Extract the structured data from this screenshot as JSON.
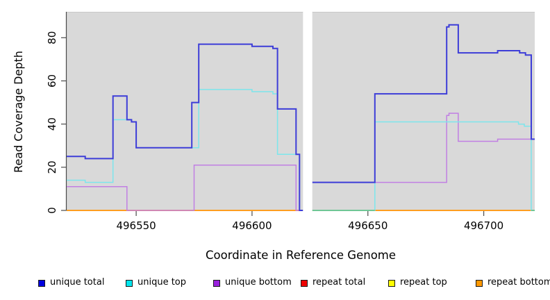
{
  "chart_data": {
    "type": "line",
    "step": true,
    "title": "",
    "xlabel": "Coordinate in Reference Genome",
    "ylabel": "Read Coverage Depth",
    "x_range": [
      496520,
      496722
    ],
    "y_range": [
      0,
      92
    ],
    "x_ticks": [
      496550,
      496600,
      496650,
      496700
    ],
    "y_ticks": [
      0,
      20,
      40,
      60,
      80
    ],
    "gap_x": [
      496622,
      496626
    ],
    "plot_bg": "#d9d9d9",
    "axis_color": "#4a4a4a",
    "tick_label_color": "#000000",
    "draw_order": [
      "repeat total",
      "repeat top",
      "repeat bottom",
      "unique bottom",
      "unique top",
      "unique total"
    ],
    "series": [
      {
        "name": "unique total",
        "line_color": "#3d3dd8",
        "legend_color": "#0000e0",
        "width": 2,
        "segments": [
          {
            "end": 496622,
            "points": [
              [
                496520,
                25
              ],
              [
                496528,
                24
              ],
              [
                496540,
                53
              ],
              [
                496546,
                42
              ],
              [
                496548,
                41
              ],
              [
                496550,
                29
              ],
              [
                496574,
                50
              ],
              [
                496577,
                77
              ],
              [
                496600,
                76
              ],
              [
                496609,
                75
              ],
              [
                496611,
                47
              ],
              [
                496619,
                26
              ],
              [
                496620.5,
                0
              ]
            ]
          },
          {
            "end": 496722,
            "points": [
              [
                496626,
                13
              ],
              [
                496653,
                54
              ],
              [
                496684,
                85
              ],
              [
                496685,
                86
              ],
              [
                496689,
                73
              ],
              [
                496706,
                74
              ],
              [
                496715.5,
                73
              ],
              [
                496718,
                72
              ],
              [
                496720.5,
                33
              ]
            ]
          }
        ]
      },
      {
        "name": "unique top",
        "line_color": "#7ce6ec",
        "legend_color": "#00e6ee",
        "width": 1.5,
        "segments": [
          {
            "end": 496622,
            "points": [
              [
                496520,
                14
              ],
              [
                496528,
                13
              ],
              [
                496540,
                42
              ],
              [
                496548,
                41
              ],
              [
                496550,
                29
              ],
              [
                496577,
                56
              ],
              [
                496600,
                55
              ],
              [
                496609,
                54
              ],
              [
                496611,
                26
              ],
              [
                496620.5,
                0
              ]
            ]
          },
          {
            "end": 496722,
            "points": [
              [
                496626,
                0
              ],
              [
                496653,
                41
              ],
              [
                496715,
                40
              ],
              [
                496717.5,
                39
              ],
              [
                496720.5,
                0
              ]
            ]
          }
        ]
      },
      {
        "name": "unique bottom",
        "line_color": "#c17fe3",
        "legend_color": "#9920dd",
        "width": 1.5,
        "segments": [
          {
            "end": 496622,
            "points": [
              [
                496520,
                11
              ],
              [
                496546,
                0
              ],
              [
                496575,
                21
              ],
              [
                496619,
                0
              ]
            ]
          },
          {
            "end": 496722,
            "points": [
              [
                496626,
                13
              ],
              [
                496684,
                44
              ],
              [
                496685,
                45
              ],
              [
                496689,
                32
              ],
              [
                496706,
                33
              ]
            ]
          }
        ]
      },
      {
        "name": "repeat total",
        "line_color": "#e00000",
        "legend_color": "#ee0000",
        "width": 1.5,
        "segments": [
          {
            "end": 496622,
            "points": [
              [
                496520,
                0
              ]
            ]
          },
          {
            "end": 496722,
            "points": [
              [
                496626,
                0
              ]
            ]
          }
        ]
      },
      {
        "name": "repeat top",
        "line_color": "#ffff00",
        "legend_color": "#ffff00",
        "width": 1.5,
        "segments": [
          {
            "end": 496622,
            "points": [
              [
                496520,
                0
              ]
            ]
          },
          {
            "end": 496722,
            "points": [
              [
                496626,
                0
              ]
            ]
          }
        ]
      },
      {
        "name": "repeat bottom",
        "line_color": "#ff9a1e",
        "legend_color": "#ff9800",
        "width": 1.8,
        "segments": [
          {
            "end": 496622,
            "points": [
              [
                496520,
                0
              ]
            ]
          },
          {
            "end": 496722,
            "points": [
              [
                496626,
                0
              ]
            ]
          }
        ]
      }
    ],
    "zero_overlays": [
      {
        "color": "#57c79b",
        "from": 496626,
        "to": 496653
      },
      {
        "color": "#57c79b",
        "from": 496720.5,
        "to": 496722
      }
    ]
  },
  "legend": {
    "items": [
      {
        "label": "unique total",
        "color": "#0000e0"
      },
      {
        "label": "unique top",
        "color": "#00e6ee"
      },
      {
        "label": "unique bottom",
        "color": "#9920dd"
      },
      {
        "label": "repeat total",
        "color": "#ee0000"
      },
      {
        "label": "repeat top",
        "color": "#ffff00"
      },
      {
        "label": "repeat bottom",
        "color": "#ff9800"
      }
    ]
  }
}
